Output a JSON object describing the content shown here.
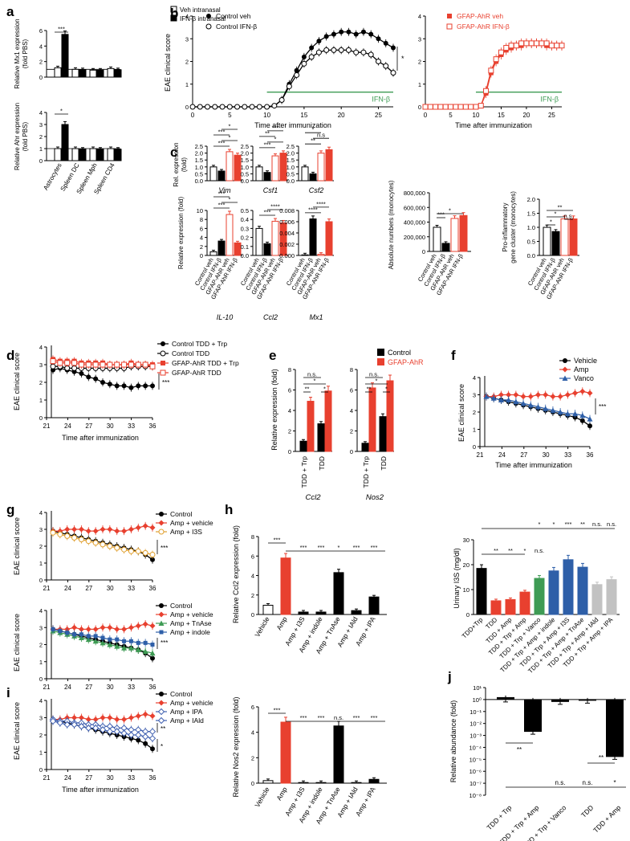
{
  "colors": {
    "red": "#e8402f",
    "black": "#000000",
    "green": "#3e9b54",
    "blue": "#2e5fa8",
    "gray": "#c2c2c2",
    "open": "#ffffff"
  },
  "panels": {
    "a": {
      "letter": "a",
      "legend": [
        "Veh intranasal",
        "IFN-β intranasal"
      ],
      "categories": [
        "Astrocytes",
        "Spleen DC",
        "Spleen Mph",
        "Spleen CD4"
      ],
      "top": {
        "ylabel1": "Relative Mx1 expression",
        "ylabel2": "(fold PBS)",
        "ylim": [
          0,
          6
        ],
        "ticks": [
          "0",
          "2",
          "4",
          "6"
        ],
        "veh": [
          1.2,
          1.0,
          0.9,
          1.1
        ],
        "ifn": [
          5.5,
          0.95,
          0.9,
          0.95
        ],
        "sig": "***"
      },
      "bottom": {
        "ylabel1": "Relative Ahr expression",
        "ylabel2": "(fold PBS)",
        "ylim": [
          0,
          4
        ],
        "ticks": [
          "0",
          "1",
          "2",
          "3",
          "4"
        ],
        "veh": [
          1.0,
          1.0,
          1.0,
          1.0
        ],
        "ifn": [
          3.0,
          0.95,
          0.95,
          0.95
        ],
        "sig": "*"
      }
    },
    "b": {
      "letter": "b",
      "ylabel": "EAE clinical score",
      "xlabel": "Time after immunization",
      "xticks": [
        "0",
        "5",
        "10",
        "15",
        "20",
        "25"
      ],
      "yticks": [
        "0",
        "1",
        "2",
        "3",
        "4"
      ],
      "ifn_label": "IFN-β",
      "left_legend": [
        "Control veh",
        "Control IFN-β"
      ],
      "right_legend": [
        "GFAP-AhR veh",
        "GFAP-AhR IFN-β"
      ],
      "sig": "*",
      "control_veh": [
        0,
        0,
        0,
        0,
        0,
        0,
        0,
        0,
        0,
        0,
        0,
        0.05,
        0.3,
        1.0,
        1.6,
        2.2,
        2.6,
        2.9,
        3.1,
        3.2,
        3.3,
        3.3,
        3.2,
        3.3,
        3.2,
        3.0,
        2.8,
        2.6
      ],
      "control_ifn": [
        0,
        0,
        0,
        0,
        0,
        0,
        0,
        0,
        0,
        0,
        0,
        0.05,
        0.3,
        0.9,
        1.4,
        1.9,
        2.2,
        2.4,
        2.5,
        2.5,
        2.5,
        2.5,
        2.4,
        2.4,
        2.3,
        2.0,
        1.8,
        1.5
      ],
      "gfap_veh": [
        0,
        0,
        0,
        0,
        0,
        0,
        0,
        0,
        0,
        0,
        0,
        0.05,
        0.6,
        1.5,
        2.0,
        2.3,
        2.5,
        2.6,
        2.7,
        2.7,
        2.8,
        2.8,
        2.8,
        2.8,
        2.7,
        2.7,
        2.7,
        2.7
      ],
      "gfap_ifn": [
        0,
        0,
        0,
        0,
        0,
        0,
        0,
        0,
        0,
        0,
        0,
        0.05,
        0.7,
        1.6,
        2.1,
        2.4,
        2.6,
        2.7,
        2.7,
        2.8,
        2.8,
        2.8,
        2.8,
        2.8,
        2.8,
        2.7,
        2.7,
        2.7
      ]
    },
    "c": {
      "letter": "c",
      "groups": [
        "Control veh",
        "Control IFN-β",
        "GFAP-AhR veh",
        "GFAP-AhR IFN-β"
      ],
      "top_ylabel1": "Rel. expression",
      "top_ylabel2": "(fold)",
      "bottom_ylabel": "Relative expression (fold)",
      "top": [
        {
          "gene": "Vim",
          "ticks": [
            "0.0",
            "0.5",
            "1.0",
            "1.5",
            "2.0",
            "2.5"
          ],
          "ylim": [
            0,
            2.5
          ],
          "values": [
            1.0,
            0.7,
            2.1,
            1.85
          ],
          "sig": [
            "***",
            "*",
            "***",
            "*"
          ]
        },
        {
          "gene": "Csf1",
          "ticks": [
            "0.0",
            "0.5",
            "1.0",
            "1.5",
            "2.0",
            "2.5"
          ],
          "ylim": [
            0,
            2.5
          ],
          "values": [
            1.0,
            0.6,
            1.8,
            2.0
          ],
          "sig": [
            "***",
            "*",
            "**",
            "***"
          ]
        },
        {
          "gene": "Csf2",
          "ticks": [
            "0.0",
            "0.5",
            "1.0",
            "1.5",
            "2.0",
            "2.5"
          ],
          "ylim": [
            0,
            2.5
          ],
          "values": [
            1.0,
            0.5,
            2.0,
            2.25
          ],
          "sig": [
            "**",
            "n.s",
            "*",
            "***"
          ]
        }
      ],
      "bottom": [
        {
          "gene": "IL-10",
          "ticks": [
            "0",
            "2",
            "4",
            "6",
            "8",
            "10"
          ],
          "ylim": [
            0,
            10
          ],
          "values": [
            0.8,
            3.2,
            9.1,
            2.8
          ],
          "sig": [
            "***",
            "*",
            "***",
            "***"
          ]
        },
        {
          "gene": "Ccl2",
          "ticks": [
            "0.0",
            "0.1",
            "0.2",
            "0.3",
            "0.4",
            "0.5"
          ],
          "ylim": [
            0,
            0.5
          ],
          "values": [
            0.3,
            0.13,
            0.38,
            0.36
          ],
          "sig": [
            "***",
            "****"
          ]
        },
        {
          "gene": "Mx1",
          "ticks": [
            "0.000",
            "0.002",
            "0.004",
            "0.006",
            "0.008"
          ],
          "ylim": [
            0,
            0.008
          ],
          "values": [
            0.0001,
            0.0065,
            0.0002,
            0.006
          ],
          "sig": [
            "****",
            "****"
          ]
        }
      ],
      "abs": {
        "ylabel": "Absolute numbers (monocytes)",
        "ticks": [
          "0",
          "200,000",
          "400,000",
          "600,000",
          "800,000"
        ],
        "ylim": [
          0,
          800000
        ],
        "values": [
          330000,
          110000,
          450000,
          490000
        ],
        "sig": [
          "***",
          "*"
        ]
      },
      "pro": {
        "ylabel1": "Pro-inflammatory",
        "ylabel2": "gene cluster (monocytes)",
        "ticks": [
          "0.0",
          "0.5",
          "1.0",
          "1.5",
          "2.0"
        ],
        "ylim": [
          0,
          2.0
        ],
        "values": [
          1.0,
          0.85,
          1.3,
          1.3
        ],
        "sig": [
          "*",
          "**",
          "*",
          "n.s."
        ]
      }
    },
    "d": {
      "letter": "d",
      "ylabel": "EAE clinical score",
      "xlabel": "Time after immunization",
      "xticks": [
        "21",
        "24",
        "27",
        "30",
        "33",
        "36"
      ],
      "yticks": [
        "0",
        "1",
        "2",
        "3",
        "4"
      ],
      "legend": [
        "Control TDD + Trp",
        "Control TDD",
        "GFAP-AhR TDD + Trp",
        "GFAP-AhR TDD"
      ],
      "sig": "***",
      "series": [
        [
          2.7,
          2.8,
          2.7,
          2.6,
          2.5,
          2.3,
          2.2,
          2.0,
          1.9,
          1.8,
          1.8,
          1.7,
          1.8,
          1.8,
          1.8
        ],
        [
          2.9,
          2.9,
          2.8,
          2.8,
          2.8,
          2.8,
          2.8,
          2.8,
          2.8,
          2.8,
          2.8,
          2.9,
          2.9,
          2.9,
          2.9
        ],
        [
          3.3,
          3.2,
          3.2,
          3.2,
          3.1,
          3.1,
          3.1,
          3.1,
          3.0,
          3.0,
          3.0,
          3.1,
          3.0,
          3.0,
          3.0
        ],
        [
          3.2,
          3.1,
          3.1,
          3.1,
          3.0,
          3.0,
          3.0,
          3.0,
          3.0,
          3.0,
          3.0,
          3.0,
          3.0,
          3.0,
          2.9
        ]
      ]
    },
    "e": {
      "letter": "e",
      "legend": [
        "Control",
        "GFAP-AhR"
      ],
      "ylabel": "Relative expression (fold)",
      "groups": [
        "TDD + Trp",
        "TDD"
      ],
      "left": {
        "gene": "Ccl2",
        "ticks": [
          "0",
          "2",
          "4",
          "6",
          "8"
        ],
        "ylim": [
          0,
          8
        ],
        "control": [
          1.0,
          2.7
        ],
        "gfap": [
          4.9,
          5.9
        ],
        "sig": [
          "n.s.",
          "*",
          "**",
          "*"
        ]
      },
      "right": {
        "gene": "Nos2",
        "ticks": [
          "0",
          "2",
          "4",
          "6",
          "8"
        ],
        "ylim": [
          0,
          8
        ],
        "control": [
          0.8,
          3.4
        ],
        "gfap": [
          6.2,
          6.9
        ],
        "sig": [
          "n.s.",
          "*",
          "**",
          "*"
        ]
      }
    },
    "f": {
      "letter": "f",
      "ylabel": "EAE clinical score",
      "xlabel": "Time after immunization",
      "xticks": [
        "21",
        "24",
        "27",
        "30",
        "33",
        "36"
      ],
      "yticks": [
        "0",
        "1",
        "2",
        "3",
        "4"
      ],
      "legend": [
        "Vehicle",
        "Amp",
        "Vanco"
      ],
      "sig": "***",
      "series": [
        [
          2.9,
          2.8,
          2.7,
          2.6,
          2.5,
          2.4,
          2.3,
          2.2,
          2.1,
          2.0,
          1.9,
          1.8,
          1.7,
          1.5,
          1.2
        ],
        [
          2.9,
          2.9,
          3.0,
          3.0,
          3.0,
          2.9,
          2.9,
          3.0,
          3.0,
          2.9,
          2.9,
          3.0,
          3.1,
          3.2,
          3.1
        ],
        [
          2.9,
          2.8,
          2.7,
          2.7,
          2.6,
          2.5,
          2.4,
          2.3,
          2.2,
          2.1,
          2.0,
          1.9,
          1.9,
          1.8,
          1.6
        ]
      ]
    },
    "g": {
      "letter": "g",
      "ylabel": "EAE clinical score",
      "xticks": [
        "21",
        "24",
        "27",
        "30",
        "33",
        "36"
      ],
      "yticks": [
        "0",
        "1",
        "2",
        "3",
        "4"
      ],
      "top": {
        "legend": [
          "Control",
          "Amp + vehicle",
          "Amp + I3S"
        ],
        "sig": "***",
        "series": [
          [
            2.9,
            2.8,
            2.7,
            2.6,
            2.5,
            2.4,
            2.3,
            2.2,
            2.1,
            2.0,
            1.9,
            1.8,
            1.7,
            1.5,
            1.2
          ],
          [
            2.9,
            2.9,
            3.0,
            3.0,
            3.0,
            2.9,
            2.9,
            3.0,
            3.0,
            2.9,
            2.9,
            3.0,
            3.1,
            3.2,
            3.1
          ],
          [
            2.8,
            2.7,
            2.6,
            2.5,
            2.4,
            2.3,
            2.2,
            2.1,
            2.0,
            1.9,
            1.8,
            1.7,
            1.7,
            1.6,
            1.5
          ]
        ]
      },
      "bottom": {
        "legend": [
          "Control",
          "Amp + vehicle",
          "Amp + TnAse",
          "Amp + indole"
        ],
        "sig": "***",
        "series": [
          [
            2.9,
            2.8,
            2.7,
            2.6,
            2.5,
            2.4,
            2.3,
            2.2,
            2.1,
            2.0,
            1.9,
            1.8,
            1.7,
            1.5,
            1.2
          ],
          [
            2.9,
            2.9,
            2.9,
            3.0,
            2.9,
            2.9,
            2.9,
            3.0,
            3.0,
            2.9,
            2.9,
            3.0,
            3.1,
            3.2,
            3.1
          ],
          [
            2.8,
            2.7,
            2.6,
            2.5,
            2.4,
            2.3,
            2.2,
            2.1,
            2.0,
            1.9,
            1.8,
            1.8,
            1.7,
            1.6,
            1.5
          ],
          [
            2.9,
            2.8,
            2.7,
            2.6,
            2.6,
            2.5,
            2.5,
            2.4,
            2.3,
            2.3,
            2.2,
            2.2,
            2.1,
            2.1,
            2.0
          ]
        ]
      }
    },
    "h": {
      "letter": "h",
      "categories": [
        "Vehicle",
        "Amp",
        "Amp + I3S",
        "Amp + indole",
        "Amp + TnAse",
        "Amp + IAld",
        "Amp + IPA"
      ],
      "ccl2": {
        "ylabel": "Relative Ccl2 expression (fold)",
        "ticks": [
          "0",
          "2",
          "4",
          "6",
          "8"
        ],
        "ylim": [
          0,
          8
        ],
        "values": [
          0.95,
          5.8,
          0.25,
          0.25,
          4.3,
          0.4,
          1.8
        ],
        "sig": [
          "***",
          "***",
          "***",
          "*",
          "***",
          "***"
        ]
      },
      "nos2": {
        "ylabel": "Relative Nos2 expression (fold)",
        "ticks": [
          "0",
          "2",
          "4",
          "6"
        ],
        "ylim": [
          0,
          6
        ],
        "values": [
          0.2,
          4.8,
          0.05,
          0.05,
          4.5,
          0.05,
          0.3
        ],
        "sig": [
          "***",
          "***",
          "***",
          "n.s.",
          "***",
          "***"
        ]
      },
      "urinary": {
        "ylabel": "Urinary I3S (mg/dl)",
        "ticks": [
          "0",
          "10",
          "20",
          "30"
        ],
        "ylim": [
          0,
          30
        ],
        "categories": [
          "TDD+Trp",
          "TDD",
          "TDD + Amp",
          "TDD + Trp + Amp",
          "TDD + Trp + Vanco",
          "TDD + Trp + Amp + indole",
          "TDD + Trp + Amp + I3S",
          "TDD + Trp + Amp + TnAse",
          "TDD + Trp + Amp + IAld",
          "TDD + Trp + Amp + IPA"
        ],
        "values": [
          18.5,
          5.5,
          6.0,
          9.0,
          14.5,
          17.5,
          22.0,
          19.0,
          12.0,
          14.0
        ],
        "sig_top": [
          "*",
          "*",
          "***",
          "**",
          "n.s.",
          "n.s."
        ],
        "sig_low": [
          "**",
          "**",
          "*",
          "n.s."
        ]
      }
    },
    "i": {
      "letter": "i",
      "ylabel": "EAE clinical score",
      "xlabel": "Time after immunization",
      "xticks": [
        "21",
        "24",
        "27",
        "30",
        "33",
        "36"
      ],
      "yticks": [
        "0",
        "1",
        "2",
        "3",
        "4"
      ],
      "legend": [
        "Control",
        "Amp + vehicle",
        "Amp + IPA",
        "Amp + IAld"
      ],
      "sig": [
        "**",
        "*"
      ],
      "series": [
        [
          2.9,
          2.8,
          2.7,
          2.6,
          2.5,
          2.4,
          2.3,
          2.2,
          2.1,
          2.0,
          1.9,
          1.8,
          1.7,
          1.5,
          1.2
        ],
        [
          2.9,
          2.9,
          3.0,
          3.0,
          3.0,
          2.9,
          2.9,
          3.0,
          3.0,
          2.9,
          2.9,
          3.0,
          3.1,
          3.2,
          3.1
        ],
        [
          2.9,
          2.8,
          2.8,
          2.7,
          2.7,
          2.6,
          2.6,
          2.5,
          2.5,
          2.4,
          2.4,
          2.3,
          2.3,
          2.2,
          2.2
        ],
        [
          2.8,
          2.7,
          2.6,
          2.6,
          2.5,
          2.4,
          2.4,
          2.3,
          2.2,
          2.2,
          2.1,
          2.0,
          2.0,
          1.9,
          1.8
        ]
      ]
    },
    "j": {
      "letter": "j",
      "ylabel": "Relative abundance (fold)",
      "ticks": [
        "10¹",
        "10⁰",
        "10⁻¹",
        "10⁻²",
        "10⁻³",
        "10⁻⁴",
        "10⁻⁵",
        "10⁻⁶",
        "10⁻⁷",
        "10⁻⁸"
      ],
      "categories": [
        "TDD + Trp",
        "TDD + Trp + Amp",
        "TDD + Trp + Vanco",
        "TDD",
        "TDD + Amp"
      ],
      "log_values": [
        0.2,
        -2.7,
        -0.2,
        -0.1,
        -4.8
      ],
      "sig": [
        "**",
        "n.s.",
        "n.s.",
        "**",
        "*"
      ]
    }
  }
}
